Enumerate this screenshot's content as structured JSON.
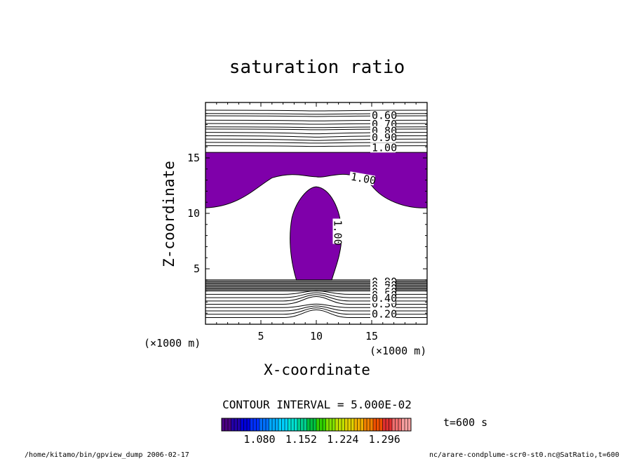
{
  "chart_data": {
    "type": "contour",
    "title": "saturation ratio",
    "xlabel": "X-coordinate",
    "ylabel": "Z-coordinate",
    "x_unit": "(×1000 m)",
    "y_unit": "(×1000 m)",
    "xlim": [
      0,
      20
    ],
    "ylim": [
      0,
      20
    ],
    "x_ticks": [
      "5",
      "10",
      "15"
    ],
    "y_ticks": [
      "5",
      "10",
      "15"
    ],
    "contour_interval_text": "CONTOUR INTERVAL = 5.000E-02",
    "time_label": "t=600 s",
    "shade_threshold": 1.0,
    "shade_color": "#7f00aa",
    "colorbar": {
      "tick_labels": [
        "1.080",
        "1.152",
        "1.224",
        "1.296"
      ],
      "colors": [
        "#4b0082",
        "#2200aa",
        "#0000dd",
        "#0030ff",
        "#0070ff",
        "#00aaff",
        "#00d0ff",
        "#00e0d0",
        "#00d090",
        "#00c040",
        "#30d000",
        "#80e000",
        "#c0e000",
        "#e0d000",
        "#f0b000",
        "#f08000",
        "#f05000",
        "#e03030",
        "#f07070",
        "#f8a0a0"
      ]
    },
    "upper_contour_labels": [
      {
        "text": "0.60",
        "x": 15.0,
        "z": 18.7
      },
      {
        "text": "0.70",
        "x": 15.0,
        "z": 17.9
      },
      {
        "text": "0.80",
        "x": 15.0,
        "z": 17.3
      },
      {
        "text": "0.90",
        "x": 15.0,
        "z": 16.7
      },
      {
        "text": "1.00",
        "x": 15.0,
        "z": 15.8
      }
    ],
    "lower_contour_labels": [
      {
        "text": "0.30",
        "x": 15.0,
        "z": 1.7
      },
      {
        "text": "0.20",
        "x": 15.0,
        "z": 0.8
      }
    ],
    "dense_contour_labels": [
      "0.90",
      "0.80",
      "0.70",
      "0.60",
      "0.50",
      "0.40"
    ],
    "inline_labels": [
      {
        "text": "1.00",
        "x": 13.1,
        "z": 13.2,
        "rotate": 10
      },
      {
        "text": "1.00",
        "x": 11.8,
        "z": 9.4,
        "rotate": 90
      }
    ]
  },
  "footer": {
    "left": "/home/kitamo/bin/gpview_dump  2006-02-17",
    "right": "nc/arare-condplume-scr0-st0.nc@SatRatio,t=600"
  }
}
